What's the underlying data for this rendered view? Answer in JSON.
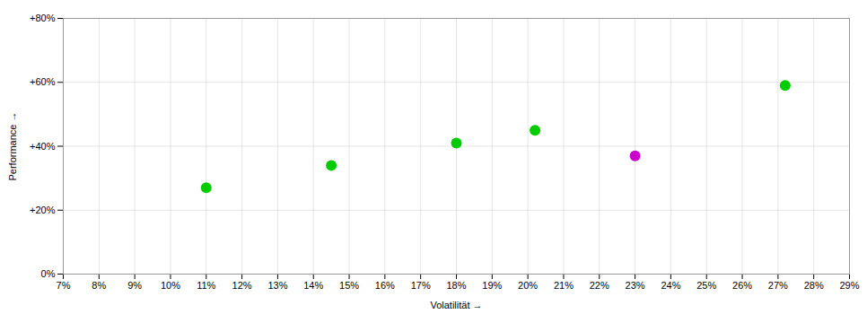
{
  "chart_data": {
    "type": "scatter",
    "x": [
      11.0,
      14.5,
      18.0,
      20.2,
      23.0,
      27.2
    ],
    "values": [
      27.0,
      34.0,
      41.0,
      45.0,
      37.0,
      59.0
    ],
    "colors": [
      "#00cc00",
      "#00cc00",
      "#00cc00",
      "#00cc00",
      "#cc00cc",
      "#00cc00"
    ],
    "xlabel": "Volatilität",
    "ylabel": "Performance",
    "xlim": [
      7,
      29
    ],
    "ylim": [
      0,
      80
    ],
    "xticks": [
      {
        "value": 7,
        "label": "7%"
      },
      {
        "value": 8,
        "label": "8%"
      },
      {
        "value": 9,
        "label": "9%"
      },
      {
        "value": 10,
        "label": "10%"
      },
      {
        "value": 11,
        "label": "11%"
      },
      {
        "value": 12,
        "label": "12%"
      },
      {
        "value": 13,
        "label": "13%"
      },
      {
        "value": 14,
        "label": "14%"
      },
      {
        "value": 15,
        "label": "15%"
      },
      {
        "value": 16,
        "label": "16%"
      },
      {
        "value": 17,
        "label": "17%"
      },
      {
        "value": 18,
        "label": "18%"
      },
      {
        "value": 19,
        "label": "19%"
      },
      {
        "value": 20,
        "label": "20%"
      },
      {
        "value": 21,
        "label": "21%"
      },
      {
        "value": 22,
        "label": "22%"
      },
      {
        "value": 23,
        "label": "23%"
      },
      {
        "value": 24,
        "label": "24%"
      },
      {
        "value": 25,
        "label": "25%"
      },
      {
        "value": 26,
        "label": "26%"
      },
      {
        "value": 27,
        "label": "27%"
      },
      {
        "value": 28,
        "label": "28%"
      },
      {
        "value": 29,
        "label": "29%"
      }
    ],
    "yticks": [
      {
        "value": 0,
        "label": "0%"
      },
      {
        "value": 20,
        "label": "+20%"
      },
      {
        "value": 40,
        "label": "+40%"
      },
      {
        "value": 60,
        "label": "+60%"
      },
      {
        "value": 80,
        "label": "+80%"
      }
    ],
    "grid": true
  }
}
